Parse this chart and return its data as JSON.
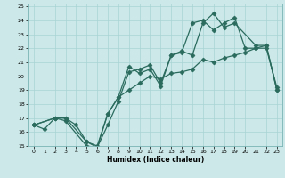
{
  "xlabel": "Humidex (Indice chaleur)",
  "background_color": "#cce8e8",
  "line_color": "#2a6b5e",
  "xlim": [
    -0.5,
    23.5
  ],
  "ylim": [
    15,
    25.2
  ],
  "yticks": [
    15,
    16,
    17,
    18,
    19,
    20,
    21,
    22,
    23,
    24,
    25
  ],
  "xticks": [
    0,
    1,
    2,
    3,
    4,
    5,
    6,
    7,
    8,
    9,
    10,
    11,
    12,
    13,
    14,
    15,
    16,
    17,
    18,
    19,
    20,
    21,
    22,
    23
  ],
  "line1_x": [
    0,
    2,
    3,
    5,
    6,
    7,
    8,
    9,
    10,
    11,
    12,
    13,
    14,
    15,
    16,
    17,
    18,
    19,
    21,
    22,
    23
  ],
  "line1_y": [
    16.5,
    17.0,
    16.8,
    15.0,
    14.9,
    16.5,
    18.2,
    20.3,
    20.5,
    20.8,
    19.5,
    21.5,
    21.8,
    21.5,
    23.8,
    24.5,
    23.5,
    23.8,
    22.2,
    22.2,
    19.0
  ],
  "line2_x": [
    0,
    2,
    3,
    4,
    5,
    6,
    7,
    8,
    9,
    10,
    11,
    12,
    13,
    14,
    15,
    16,
    17,
    18,
    19,
    20,
    21,
    22,
    23
  ],
  "line2_y": [
    16.5,
    17.0,
    17.0,
    16.5,
    15.3,
    15.0,
    17.3,
    18.5,
    20.7,
    20.2,
    20.5,
    19.3,
    21.5,
    21.7,
    23.8,
    24.0,
    23.3,
    23.8,
    24.2,
    22.0,
    22.0,
    22.2,
    19.0
  ],
  "line3_x": [
    0,
    1,
    2,
    3,
    5,
    6,
    7,
    8,
    9,
    10,
    11,
    12,
    13,
    14,
    15,
    16,
    17,
    18,
    19,
    20,
    21,
    22,
    23
  ],
  "line3_y": [
    16.5,
    16.2,
    17.0,
    17.0,
    15.3,
    14.9,
    17.3,
    18.5,
    19.0,
    19.5,
    20.0,
    19.8,
    20.2,
    20.3,
    20.5,
    21.2,
    21.0,
    21.3,
    21.5,
    21.7,
    22.0,
    22.0,
    19.2
  ]
}
